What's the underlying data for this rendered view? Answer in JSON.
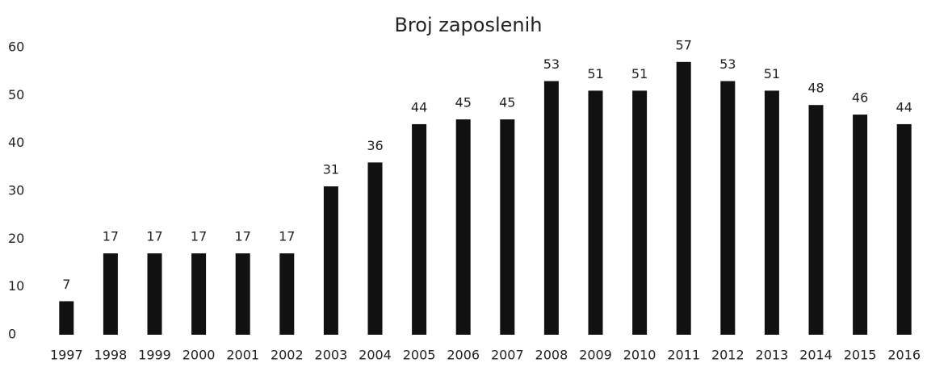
{
  "chart_data": {
    "type": "bar",
    "title": "Broj zaposlenih",
    "categories": [
      "1997",
      "1998",
      "1999",
      "2000",
      "2001",
      "2002",
      "2003",
      "2004",
      "2005",
      "2006",
      "2007",
      "2008",
      "2009",
      "2010",
      "2011",
      "2012",
      "2013",
      "2014",
      "2015",
      "2016"
    ],
    "values": [
      7,
      17,
      17,
      17,
      17,
      17,
      31,
      36,
      44,
      45,
      45,
      53,
      51,
      51,
      57,
      53,
      51,
      48,
      46,
      44
    ],
    "color": "#111111",
    "ylim": [
      0,
      60
    ],
    "yticks": [
      0,
      10,
      20,
      30,
      40,
      50,
      60
    ],
    "grid": false
  }
}
